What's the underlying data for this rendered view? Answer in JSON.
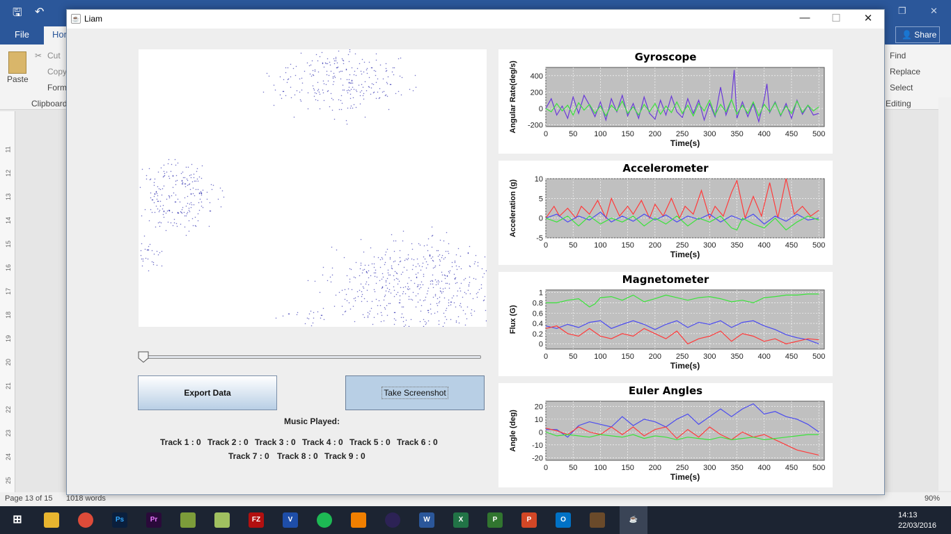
{
  "word": {
    "tabs": {
      "file": "File",
      "home": "Hor"
    },
    "share": "Share",
    "ribbon": {
      "paste": "Paste",
      "cut": "Cut",
      "copy": "Copy",
      "format": "Form",
      "clipboard": "Clipboard",
      "find": "Find",
      "replace": "Replace",
      "select": "Select",
      "editing": "Editing"
    },
    "ruler_numbers": [
      "11",
      "12",
      "13",
      "14",
      "15",
      "16",
      "17",
      "18",
      "19",
      "20",
      "21",
      "22",
      "23",
      "24",
      "25"
    ],
    "status": {
      "page": "Page 13 of 15",
      "words": "1018 words",
      "zoom": "90%"
    }
  },
  "taskbar": {
    "time": "14:13",
    "date": "22/03/2016"
  },
  "app": {
    "title": "Liam",
    "controls": {
      "minimize": "—",
      "maximize": "☐",
      "close": "✕"
    },
    "slider": {
      "value": 0
    },
    "buttons": {
      "export": "Export Data",
      "screenshot": "Take Screenshot"
    },
    "music_label": "Music Played:",
    "tracks_row1": [
      "Track 1 : 0",
      "Track 2 : 0",
      "Track 3 : 0",
      "Track 4 : 0",
      "Track 5 : 0",
      "Track 6 : 0"
    ],
    "tracks_row2": [
      "Track 7 : 0",
      "Track 8 : 0",
      "Track 9 : 0"
    ]
  },
  "colors": {
    "plot_bg": "#c0c0c0",
    "red": "#ff3b3b",
    "green": "#3be33b",
    "blue": "#4a4af0",
    "purple": "#6a3ad8",
    "dots": "#00009a"
  },
  "chart_data": [
    {
      "type": "line",
      "title": "Gyroscope",
      "xlabel": "Time(s)",
      "ylabel": "Angular Rate(deg/s)",
      "xlim": [
        0,
        510
      ],
      "ylim": [
        -220,
        500
      ],
      "xticks": [
        0,
        50,
        100,
        150,
        200,
        250,
        300,
        350,
        400,
        450,
        500
      ],
      "yticks": [
        -200,
        0,
        200,
        400
      ],
      "grid": true,
      "series": [
        {
          "color": "#6a3ad8",
          "x": [
            0,
            10,
            20,
            30,
            40,
            50,
            60,
            70,
            80,
            90,
            100,
            110,
            120,
            130,
            140,
            150,
            160,
            170,
            180,
            190,
            200,
            210,
            220,
            230,
            240,
            250,
            260,
            270,
            280,
            290,
            300,
            310,
            320,
            330,
            340,
            345,
            350,
            360,
            370,
            380,
            390,
            400,
            405,
            410,
            420,
            430,
            440,
            450,
            460,
            470,
            480,
            490,
            500
          ],
          "y": [
            0,
            120,
            -80,
            30,
            -120,
            140,
            -60,
            160,
            40,
            -100,
            80,
            -140,
            120,
            -40,
            160,
            -90,
            60,
            -120,
            140,
            -60,
            -130,
            100,
            -80,
            150,
            -40,
            -110,
            120,
            -60,
            100,
            -140,
            60,
            -100,
            260,
            -80,
            110,
            470,
            -120,
            80,
            -100,
            60,
            -160,
            110,
            300,
            -50,
            80,
            -90,
            60,
            -120,
            100,
            -70,
            40,
            -80,
            -60
          ]
        },
        {
          "color": "#3be33b",
          "x": [
            0,
            10,
            20,
            30,
            40,
            50,
            60,
            70,
            80,
            90,
            100,
            110,
            120,
            130,
            140,
            150,
            160,
            170,
            180,
            190,
            200,
            210,
            220,
            230,
            240,
            250,
            260,
            270,
            280,
            290,
            300,
            310,
            320,
            330,
            340,
            350,
            360,
            370,
            380,
            390,
            400,
            410,
            420,
            430,
            440,
            450,
            460,
            470,
            480,
            490,
            500
          ],
          "y": [
            0,
            -40,
            60,
            -30,
            40,
            -80,
            70,
            -20,
            50,
            -60,
            30,
            -90,
            40,
            -30,
            90,
            -60,
            20,
            -80,
            50,
            -40,
            60,
            -70,
            30,
            -50,
            80,
            -60,
            40,
            -90,
            60,
            -30,
            100,
            -80,
            50,
            -40,
            110,
            -70,
            40,
            -60,
            80,
            -90,
            50,
            -40,
            70,
            -80,
            30,
            -60,
            90,
            -50,
            40,
            -30,
            20
          ]
        }
      ]
    },
    {
      "type": "line",
      "title": "Accelerometer",
      "xlabel": "Time(s)",
      "ylabel": "Acceleration (g)",
      "xlim": [
        0,
        510
      ],
      "ylim": [
        -5,
        10
      ],
      "xticks": [
        0,
        50,
        100,
        150,
        200,
        250,
        300,
        350,
        400,
        450,
        500
      ],
      "yticks": [
        -5,
        0,
        5,
        10
      ],
      "grid": true,
      "series": [
        {
          "color": "#ff3b3b",
          "x": [
            0,
            15,
            25,
            40,
            55,
            65,
            80,
            95,
            110,
            120,
            135,
            150,
            160,
            175,
            190,
            200,
            215,
            230,
            245,
            255,
            270,
            285,
            300,
            310,
            325,
            340,
            350,
            365,
            380,
            395,
            410,
            425,
            440,
            455,
            470,
            485,
            500
          ],
          "y": [
            0,
            3,
            0.5,
            2.5,
            0,
            3,
            1,
            4.5,
            0,
            5,
            0.5,
            3,
            1,
            4.5,
            0,
            3.5,
            0.5,
            5,
            0,
            3,
            1,
            7,
            0,
            3,
            0.5,
            6.5,
            9.5,
            0,
            5.5,
            0.5,
            9,
            0,
            10,
            1,
            3,
            0.5,
            2
          ]
        },
        {
          "color": "#4a4af0",
          "x": [
            0,
            20,
            40,
            60,
            80,
            100,
            120,
            140,
            160,
            180,
            200,
            220,
            240,
            260,
            280,
            300,
            320,
            340,
            360,
            380,
            400,
            420,
            440,
            460,
            480,
            500
          ],
          "y": [
            0,
            1,
            -1,
            0.5,
            -0.5,
            1.5,
            -1,
            0.5,
            -0.8,
            1,
            -0.5,
            0.8,
            -1,
            0.5,
            -0.3,
            1,
            -1,
            0.6,
            -0.5,
            1,
            -1.5,
            0.5,
            -0.8,
            1,
            -0.5,
            0
          ]
        },
        {
          "color": "#3be33b",
          "x": [
            0,
            20,
            40,
            60,
            80,
            100,
            120,
            140,
            160,
            180,
            200,
            220,
            240,
            260,
            280,
            300,
            320,
            340,
            350,
            360,
            380,
            400,
            420,
            440,
            460,
            480,
            500
          ],
          "y": [
            0,
            -1,
            0.5,
            -2,
            0.5,
            -1.5,
            0,
            -1,
            0.5,
            -2,
            0,
            -1.5,
            0.5,
            -2,
            0,
            -1,
            0.5,
            -2.5,
            -3,
            0,
            -1.5,
            -2.5,
            0,
            -3,
            -1,
            0.5,
            -0.5
          ]
        }
      ]
    },
    {
      "type": "line",
      "title": "Magnetometer",
      "xlabel": "Time(s)",
      "ylabel": "Flux (G)",
      "xlim": [
        0,
        510
      ],
      "ylim": [
        -0.1,
        1.05
      ],
      "xticks": [
        0,
        50,
        100,
        150,
        200,
        250,
        300,
        350,
        400,
        450,
        500
      ],
      "yticks": [
        0.0,
        0.2,
        0.4,
        0.6,
        0.8,
        1.0
      ],
      "grid": true,
      "series": [
        {
          "color": "#3be33b",
          "x": [
            0,
            20,
            40,
            60,
            80,
            90,
            100,
            120,
            140,
            160,
            180,
            200,
            220,
            240,
            260,
            280,
            300,
            320,
            340,
            360,
            380,
            400,
            420,
            440,
            460,
            480,
            500
          ],
          "y": [
            0.8,
            0.8,
            0.85,
            0.88,
            0.72,
            0.78,
            0.9,
            0.92,
            0.85,
            0.95,
            0.82,
            0.88,
            0.95,
            0.9,
            0.85,
            0.9,
            0.92,
            0.88,
            0.82,
            0.85,
            0.8,
            0.9,
            0.92,
            0.95,
            0.95,
            0.97,
            0.97
          ]
        },
        {
          "color": "#4a4af0",
          "x": [
            0,
            20,
            40,
            60,
            80,
            100,
            120,
            140,
            160,
            180,
            200,
            220,
            240,
            260,
            280,
            300,
            320,
            340,
            360,
            380,
            400,
            420,
            440,
            460,
            480,
            500
          ],
          "y": [
            0.35,
            0.3,
            0.38,
            0.32,
            0.42,
            0.45,
            0.3,
            0.38,
            0.45,
            0.38,
            0.28,
            0.38,
            0.45,
            0.32,
            0.42,
            0.38,
            0.45,
            0.32,
            0.42,
            0.45,
            0.35,
            0.28,
            0.18,
            0.12,
            0.08,
            0.0
          ]
        },
        {
          "color": "#ff3b3b",
          "x": [
            0,
            20,
            40,
            60,
            80,
            100,
            120,
            140,
            160,
            180,
            200,
            220,
            240,
            260,
            280,
            300,
            320,
            340,
            360,
            380,
            400,
            420,
            440,
            460,
            480,
            500
          ],
          "y": [
            0.3,
            0.35,
            0.2,
            0.15,
            0.3,
            0.15,
            0.1,
            0.2,
            0.15,
            0.3,
            0.2,
            0.1,
            0.25,
            0.0,
            0.1,
            0.15,
            0.25,
            0.05,
            0.2,
            0.15,
            0.05,
            0.1,
            0.0,
            0.05,
            0.1,
            0.08
          ]
        }
      ]
    },
    {
      "type": "line",
      "title": "Euler Angles",
      "xlabel": "Time(s)",
      "ylabel": "Angle (deg)",
      "xlim": [
        0,
        510
      ],
      "ylim": [
        -22,
        24
      ],
      "xticks": [
        0,
        50,
        100,
        150,
        200,
        250,
        300,
        350,
        400,
        450,
        500
      ],
      "yticks": [
        -20,
        -10,
        0,
        10,
        20
      ],
      "grid": true,
      "series": [
        {
          "color": "#4a4af0",
          "x": [
            0,
            20,
            40,
            60,
            80,
            100,
            120,
            140,
            160,
            180,
            200,
            220,
            240,
            260,
            280,
            300,
            320,
            340,
            360,
            380,
            400,
            420,
            440,
            460,
            480,
            500
          ],
          "y": [
            2,
            2,
            -4,
            5,
            8,
            6,
            4,
            12,
            5,
            10,
            8,
            4,
            10,
            14,
            6,
            12,
            18,
            12,
            18,
            22,
            14,
            16,
            12,
            10,
            6,
            0
          ]
        },
        {
          "color": "#ff3b3b",
          "x": [
            0,
            20,
            40,
            60,
            80,
            100,
            120,
            140,
            160,
            180,
            200,
            220,
            240,
            260,
            280,
            300,
            320,
            340,
            360,
            380,
            400,
            420,
            440,
            460,
            480,
            500
          ],
          "y": [
            3,
            1,
            -2,
            4,
            0,
            -2,
            4,
            -2,
            4,
            -3,
            2,
            4,
            -5,
            2,
            -4,
            4,
            -2,
            -6,
            0,
            -4,
            -2,
            -6,
            -10,
            -14,
            -16,
            -18
          ]
        },
        {
          "color": "#3be33b",
          "x": [
            0,
            20,
            40,
            60,
            80,
            100,
            120,
            140,
            160,
            180,
            200,
            220,
            240,
            260,
            280,
            300,
            320,
            340,
            360,
            380,
            400,
            420,
            440,
            460,
            480,
            500
          ],
          "y": [
            0,
            -3,
            -2,
            -3,
            -4,
            -2,
            -3,
            -4,
            -2,
            -5,
            -3,
            -4,
            -6,
            -4,
            -5,
            -6,
            -4,
            -6,
            -5,
            -4,
            -6,
            -5,
            -4,
            -3,
            -2,
            -2
          ]
        }
      ]
    }
  ]
}
